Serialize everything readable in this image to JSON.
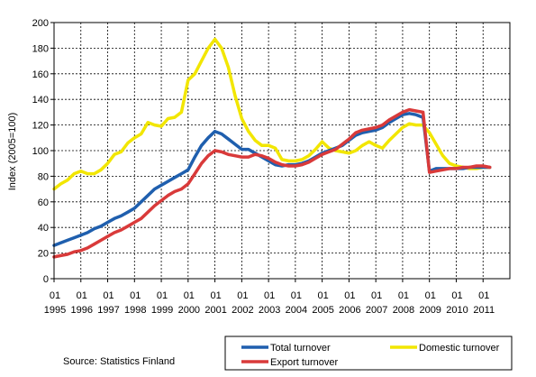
{
  "chart_data": {
    "type": "line",
    "xlabel": "",
    "ylabel": "Index (2005=100)",
    "ylim": [
      0,
      200
    ],
    "yticks": [
      0,
      20,
      40,
      60,
      80,
      100,
      120,
      140,
      160,
      180,
      200
    ],
    "xlim": [
      1995.0,
      2012.0
    ],
    "xtick_top": [
      "01",
      "01",
      "01",
      "01",
      "01",
      "01",
      "01",
      "01",
      "01",
      "01",
      "01",
      "01",
      "01",
      "01",
      "01",
      "01",
      "01"
    ],
    "xtick_bottom": [
      "1995",
      "1996",
      "1997",
      "1998",
      "1999",
      "2000",
      "2001",
      "2002",
      "2003",
      "2004",
      "2005",
      "2006",
      "2007",
      "2008",
      "2009",
      "2010",
      "2011"
    ],
    "grid": true,
    "legend_position": "bottom-right",
    "series": [
      {
        "name": "Domestic turnover",
        "color": "#f2e600",
        "x": [
          1995.0,
          1995.25,
          1995.5,
          1995.75,
          1996.0,
          1996.25,
          1996.5,
          1996.75,
          1997.0,
          1997.25,
          1997.5,
          1997.75,
          1998.0,
          1998.25,
          1998.5,
          1998.75,
          1999.0,
          1999.25,
          1999.5,
          1999.75,
          2000.0,
          2000.25,
          2000.5,
          2000.75,
          2001.0,
          2001.25,
          2001.5,
          2001.75,
          2002.0,
          2002.25,
          2002.5,
          2002.75,
          2003.0,
          2003.25,
          2003.5,
          2003.75,
          2004.0,
          2004.25,
          2004.5,
          2004.75,
          2005.0,
          2005.25,
          2005.5,
          2005.75,
          2006.0,
          2006.25,
          2006.5,
          2006.75,
          2007.0,
          2007.25,
          2007.5,
          2007.75,
          2008.0,
          2008.25,
          2008.5,
          2008.75,
          2009.0,
          2009.25,
          2009.5,
          2009.75,
          2010.0,
          2010.25,
          2010.5,
          2010.75,
          2011.0,
          2011.25
        ],
        "values": [
          70,
          74,
          77,
          82,
          84,
          82,
          82,
          85,
          90,
          97,
          99,
          106,
          110,
          113,
          122,
          120,
          119,
          125,
          126,
          130,
          155,
          160,
          170,
          180,
          187,
          180,
          165,
          143,
          125,
          115,
          108,
          104,
          104,
          102,
          93,
          92,
          92,
          93,
          96,
          101,
          107,
          102,
          100,
          99,
          98,
          100,
          104,
          107,
          104,
          102,
          108,
          113,
          118,
          121,
          120,
          120,
          114,
          105,
          96,
          90,
          88,
          87,
          86,
          86,
          87,
          87
        ]
      },
      {
        "name": "Total turnover",
        "color": "#1f5fae",
        "x": [
          1995.0,
          1995.25,
          1995.5,
          1995.75,
          1996.0,
          1996.25,
          1996.5,
          1996.75,
          1997.0,
          1997.25,
          1997.5,
          1997.75,
          1998.0,
          1998.25,
          1998.5,
          1998.75,
          1999.0,
          1999.25,
          1999.5,
          1999.75,
          2000.0,
          2000.25,
          2000.5,
          2000.75,
          2001.0,
          2001.25,
          2001.5,
          2001.75,
          2002.0,
          2002.25,
          2002.5,
          2002.75,
          2003.0,
          2003.25,
          2003.5,
          2003.75,
          2004.0,
          2004.25,
          2004.5,
          2004.75,
          2005.0,
          2005.25,
          2005.5,
          2005.75,
          2006.0,
          2006.25,
          2006.5,
          2006.75,
          2007.0,
          2007.25,
          2007.5,
          2007.75,
          2008.0,
          2008.25,
          2008.5,
          2008.75,
          2008.76,
          2009.0,
          2009.25,
          2009.5,
          2009.75,
          2010.0,
          2010.25,
          2010.5,
          2010.75,
          2011.0,
          2011.25
        ],
        "values": [
          26,
          28,
          30,
          32,
          34,
          36,
          39,
          41,
          44,
          47,
          49,
          52,
          55,
          60,
          65,
          70,
          73,
          76,
          79,
          82,
          85,
          95,
          104,
          110,
          115,
          113,
          109,
          105,
          101,
          101,
          98,
          95,
          92,
          89,
          88,
          89,
          89,
          90,
          92,
          95,
          98,
          100,
          102,
          104,
          108,
          112,
          114,
          115,
          116,
          118,
          122,
          125,
          128,
          129,
          128,
          126,
          126,
          84,
          86,
          86,
          86,
          86,
          86,
          87,
          87,
          87,
          87
        ]
      },
      {
        "name": "Export turnover",
        "color": "#d93a3a",
        "x": [
          1995.0,
          1995.25,
          1995.5,
          1995.75,
          1996.0,
          1996.25,
          1996.5,
          1996.75,
          1997.0,
          1997.25,
          1997.5,
          1997.75,
          1998.0,
          1998.25,
          1998.5,
          1998.75,
          1999.0,
          1999.25,
          1999.5,
          1999.75,
          2000.0,
          2000.25,
          2000.5,
          2000.75,
          2001.0,
          2001.25,
          2001.5,
          2001.75,
          2002.0,
          2002.25,
          2002.5,
          2002.75,
          2003.0,
          2003.25,
          2003.5,
          2003.75,
          2004.0,
          2004.25,
          2004.5,
          2004.75,
          2005.0,
          2005.25,
          2005.5,
          2005.75,
          2006.0,
          2006.25,
          2006.5,
          2006.75,
          2007.0,
          2007.25,
          2007.5,
          2007.75,
          2008.0,
          2008.25,
          2008.5,
          2008.75,
          2008.76,
          2009.0,
          2009.25,
          2009.5,
          2009.75,
          2010.0,
          2010.25,
          2010.5,
          2010.75,
          2011.0,
          2011.25
        ],
        "values": [
          17,
          18,
          19,
          21,
          22,
          24,
          27,
          30,
          33,
          36,
          38,
          41,
          44,
          47,
          52,
          57,
          61,
          65,
          68,
          70,
          74,
          82,
          90,
          96,
          100,
          99,
          97,
          96,
          95,
          95,
          97,
          96,
          94,
          91,
          89,
          88,
          88,
          89,
          91,
          94,
          97,
          99,
          101,
          105,
          109,
          114,
          116,
          117,
          118,
          120,
          124,
          127,
          130,
          132,
          131,
          130,
          130,
          83,
          84,
          85,
          86,
          86,
          87,
          87,
          88,
          88,
          87
        ]
      }
    ]
  },
  "source_text": "Source: Statistics Finland"
}
